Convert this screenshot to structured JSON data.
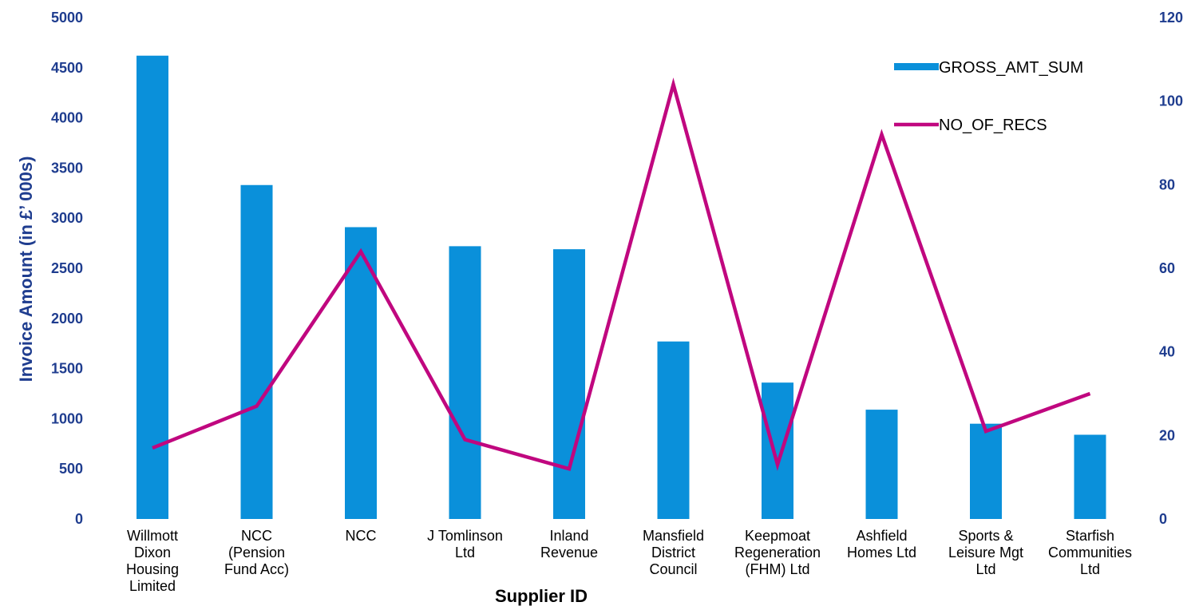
{
  "chart_data": {
    "type": "bar",
    "title": "",
    "xlabel": "Supplier ID",
    "ylabel": "Invoice Amount (in £’ 000s)",
    "y2label": "",
    "categories": [
      [
        "Willmott",
        "Dixon",
        "Housing",
        "Limited"
      ],
      [
        "NCC",
        "(Pension",
        "Fund Acc)"
      ],
      [
        "NCC"
      ],
      [
        "J Tomlinson",
        "Ltd"
      ],
      [
        "Inland",
        "Revenue"
      ],
      [
        "Mansfield",
        "District",
        "Council"
      ],
      [
        "Keepmoat",
        "Regeneration",
        "(FHM) Ltd"
      ],
      [
        "Ashfield",
        "Homes Ltd"
      ],
      [
        "Sports &",
        "Leisure Mgt",
        "Ltd"
      ],
      [
        "Starfish",
        "Communities",
        "Ltd"
      ]
    ],
    "series": [
      {
        "name": "GROSS_AMT_SUM",
        "type": "bar",
        "axis": "left",
        "color": "#0A90DA",
        "values": [
          4620,
          3330,
          2910,
          2720,
          2690,
          1770,
          1360,
          1090,
          950,
          840
        ]
      },
      {
        "name": "NO_OF_RECS",
        "type": "line",
        "axis": "right",
        "color": "#C0077F",
        "values": [
          17,
          27,
          64,
          19,
          12,
          104,
          13,
          92,
          21,
          30
        ]
      }
    ],
    "ylim": [
      0,
      5000
    ],
    "yticks": [
      0,
      500,
      1000,
      1500,
      2000,
      2500,
      3000,
      3500,
      4000,
      4500,
      5000
    ],
    "y2lim": [
      0,
      120
    ],
    "y2ticks": [
      0,
      20,
      40,
      60,
      80,
      100,
      120
    ],
    "grid": false,
    "legend_position": "top-right",
    "colors": {
      "axis_text": "#1F3D8F",
      "axis_title_left": "#1F3D8F",
      "axis_title_bottom": "#000000"
    }
  }
}
